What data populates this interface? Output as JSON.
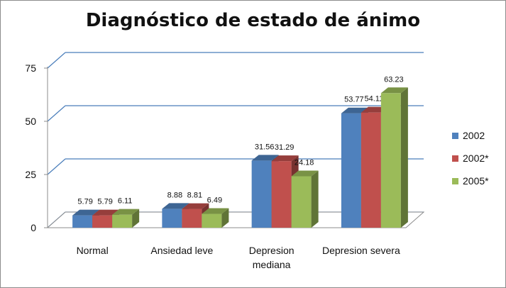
{
  "chart_data": {
    "type": "bar",
    "title": "Diagnóstico de estado de ánimo",
    "categories": [
      [
        "Normal"
      ],
      [
        "Ansiedad leve"
      ],
      [
        "Depresion",
        "mediana"
      ],
      [
        "Depresion severa"
      ]
    ],
    "series": [
      {
        "name": "2002",
        "color": "#4f81bd",
        "values": [
          5.79,
          8.88,
          31.56,
          53.77
        ],
        "labels": [
          "5.79",
          "8.88",
          "31.56",
          "53.77"
        ]
      },
      {
        "name": "2002*",
        "color": "#c0504d",
        "values": [
          5.79,
          8.81,
          31.29,
          54.11
        ],
        "labels": [
          "5.79",
          "8.81",
          "31.29",
          "54.11"
        ]
      },
      {
        "name": "2005*",
        "color": "#9bbb59",
        "values": [
          6.11,
          6.49,
          24.18,
          63.23
        ],
        "labels": [
          "6.11",
          "6.49",
          "24.18",
          "63.23"
        ]
      }
    ],
    "yticks": [
      0,
      25,
      50,
      75
    ],
    "ylim": [
      0,
      75
    ],
    "gridlines": true,
    "legend_position": "right",
    "style": "3d-clustered-column"
  }
}
